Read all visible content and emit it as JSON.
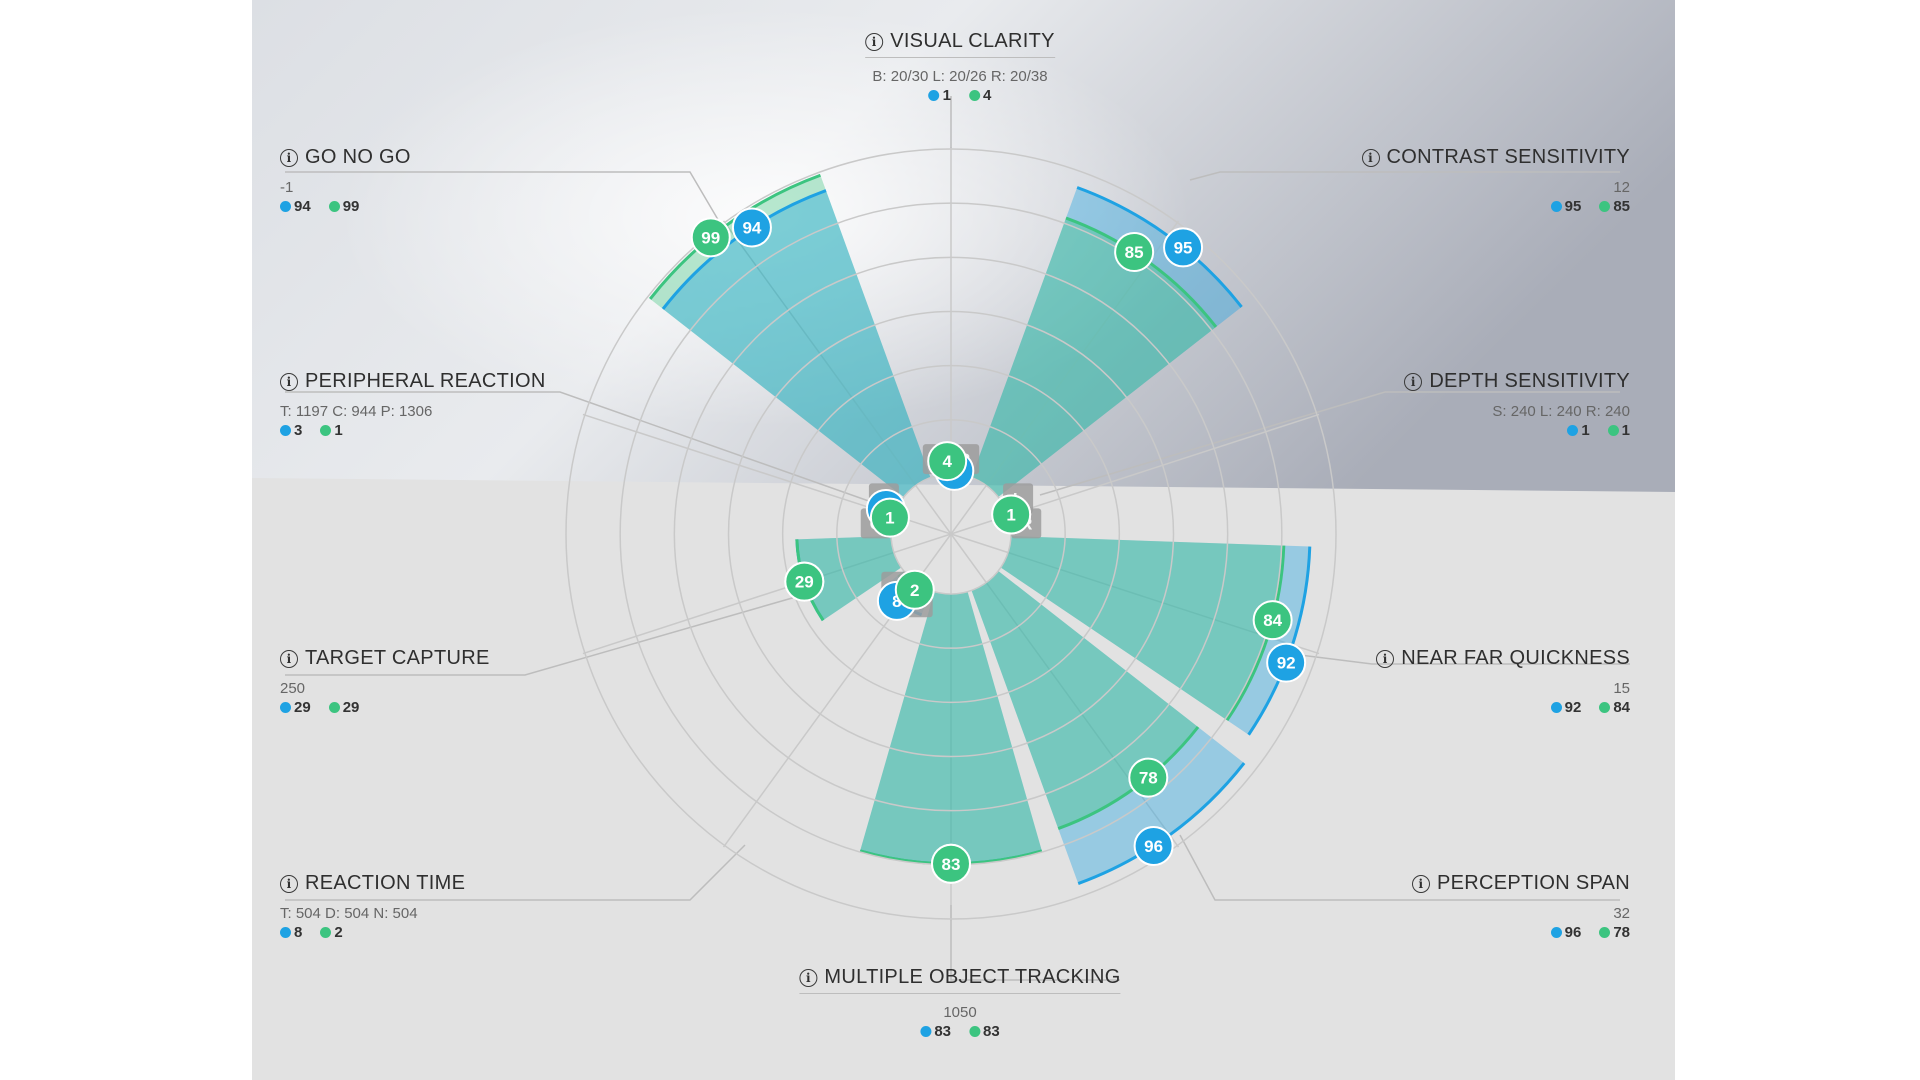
{
  "colors": {
    "blue": "#1ea2e3",
    "green": "#3cc480",
    "grid": "#c9c9c9",
    "sq": "#9c9c9c"
  },
  "chart_data": {
    "type": "polar-area",
    "rmax": 100,
    "ring_count": 6,
    "series": [
      {
        "name": "",
        "color": "#1ea2e3",
        "values": [
          1,
          95,
          1,
          92,
          96,
          83,
          8,
          29,
          3,
          94
        ]
      },
      {
        "name": "",
        "color": "#3cc480",
        "values": [
          4,
          85,
          1,
          84,
          78,
          83,
          2,
          29,
          1,
          99
        ]
      }
    ],
    "categories": [
      {
        "title": "VISUAL CLARITY",
        "detail": "B: 20/30 L: 20/26 R: 20/38",
        "blue": "1",
        "green": "4",
        "sublabels": [
          "L",
          "R"
        ]
      },
      {
        "title": "CONTRAST SENSITIVITY",
        "detail": "12",
        "blue": "95",
        "green": "85",
        "sublabels": []
      },
      {
        "title": "DEPTH SENSITIVITY",
        "detail": "S: 240 L: 240 R: 240",
        "blue": "1",
        "green": "1",
        "sublabels": [
          "L",
          "R"
        ]
      },
      {
        "title": "NEAR FAR QUICKNESS",
        "detail": "15",
        "blue": "92",
        "green": "84",
        "sublabels": []
      },
      {
        "title": "PERCEPTION SPAN",
        "detail": "32",
        "blue": "96",
        "green": "78",
        "sublabels": []
      },
      {
        "title": "MULTIPLE OBJECT TRACKING",
        "detail": "1050",
        "blue": "83",
        "green": "83",
        "sublabels": []
      },
      {
        "title": "REACTION TIME",
        "detail": "T: 504 D: 504 N: 504",
        "blue": "8",
        "green": "2",
        "sublabels": [
          "D",
          "N"
        ]
      },
      {
        "title": "TARGET CAPTURE",
        "detail": "250",
        "blue": "29",
        "green": "29",
        "sublabels": []
      },
      {
        "title": "PERIPHERAL REACTION",
        "detail": "T: 1197 C: 944 P: 1306",
        "blue": "3",
        "green": "1",
        "sublabels": [
          "C",
          "P"
        ]
      },
      {
        "title": "GO NO GO",
        "detail": "-1",
        "blue": "94",
        "green": "99",
        "sublabels": []
      }
    ]
  }
}
